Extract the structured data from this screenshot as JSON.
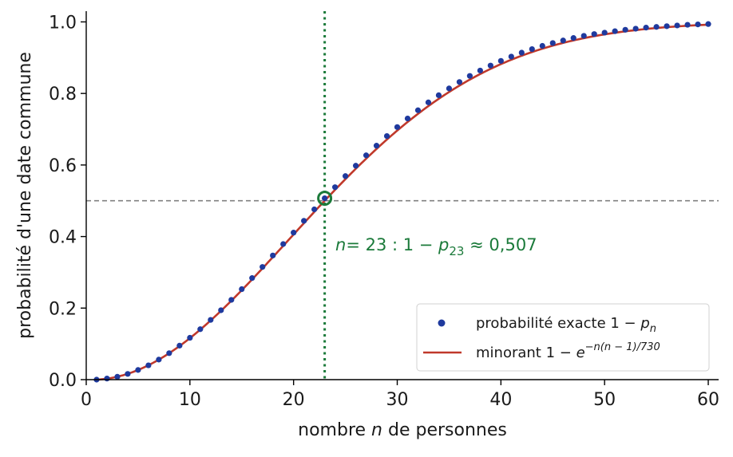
{
  "chart_data": {
    "type": "scatter",
    "xlabel": "nombre n de personnes",
    "ylabel": "probabilité d'une date commune",
    "xlim": [
      0,
      61
    ],
    "ylim": [
      0,
      1.03
    ],
    "x_ticks": [
      0,
      10,
      20,
      30,
      40,
      50,
      60
    ],
    "y_ticks": [
      0.0,
      0.2,
      0.4,
      0.6,
      0.8,
      1.0
    ],
    "x_tick_labels": [
      "0",
      "10",
      "20",
      "30",
      "40",
      "50",
      "60"
    ],
    "y_tick_labels": [
      "0.0",
      "0.2",
      "0.4",
      "0.6",
      "0.8",
      "1.0"
    ],
    "grid": false,
    "legend_position": "bottom-right",
    "series": [
      {
        "name": "probabilité exacte 1 − pₙ",
        "kind": "points",
        "color": "#1f3a9e",
        "x": [
          1,
          2,
          3,
          4,
          5,
          6,
          7,
          8,
          9,
          10,
          11,
          12,
          13,
          14,
          15,
          16,
          17,
          18,
          19,
          20,
          21,
          22,
          23,
          24,
          25,
          26,
          27,
          28,
          29,
          30,
          31,
          32,
          33,
          34,
          35,
          36,
          37,
          38,
          39,
          40,
          41,
          42,
          43,
          44,
          45,
          46,
          47,
          48,
          49,
          50,
          51,
          52,
          53,
          54,
          55,
          56,
          57,
          58,
          59,
          60
        ],
        "y": [
          0.0,
          0.003,
          0.008,
          0.016,
          0.027,
          0.04,
          0.056,
          0.074,
          0.095,
          0.117,
          0.141,
          0.167,
          0.194,
          0.223,
          0.253,
          0.284,
          0.315,
          0.347,
          0.379,
          0.411,
          0.444,
          0.476,
          0.507,
          0.538,
          0.569,
          0.598,
          0.627,
          0.654,
          0.681,
          0.706,
          0.73,
          0.753,
          0.775,
          0.795,
          0.814,
          0.832,
          0.849,
          0.864,
          0.878,
          0.891,
          0.903,
          0.914,
          0.924,
          0.933,
          0.941,
          0.948,
          0.955,
          0.961,
          0.966,
          0.97,
          0.974,
          0.978,
          0.981,
          0.984,
          0.986,
          0.988,
          0.99,
          0.992,
          0.993,
          0.994
        ]
      },
      {
        "name": "minorant 1 − e^{−n(n−1)/730}",
        "kind": "line",
        "color": "#c0392b",
        "formula": "1 - exp(-n(n-1)/730)"
      }
    ],
    "reference_lines": {
      "horizontal": {
        "y": 0.5,
        "color": "#808080",
        "style": "dashed"
      },
      "vertical": {
        "x": 23,
        "color": "#1b7a3a",
        "style": "dotted"
      }
    },
    "highlight_point": {
      "x": 23,
      "y": 0.507,
      "color": "#1b7a3a"
    },
    "annotation": {
      "n_label": "n",
      "n_value": "= 23 : 1 − ",
      "p_label": "p",
      "p_sub": "23",
      "approx": " ≈ 0,507"
    },
    "legend": {
      "exact_prefix": "probabilité exacte 1 − ",
      "exact_var": "p",
      "exact_sub": "n",
      "lower_prefix": "minorant 1 − ",
      "lower_base": "e",
      "lower_exp": "−n(n − 1)/730"
    }
  }
}
